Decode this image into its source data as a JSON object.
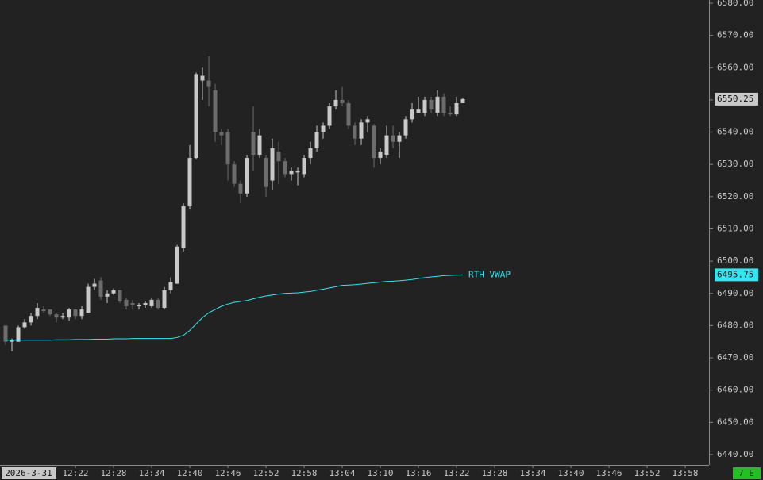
{
  "chart_data": {
    "type": "candlestick",
    "date_label": "2026-3-31",
    "status": "7 E",
    "x": [
      "12:11",
      "12:12",
      "12:13",
      "12:14",
      "12:15",
      "12:16",
      "12:17",
      "12:18",
      "12:19",
      "12:20",
      "12:21",
      "12:22",
      "12:23",
      "12:24",
      "12:25",
      "12:26",
      "12:27",
      "12:28",
      "12:29",
      "12:30",
      "12:31",
      "12:32",
      "12:33",
      "12:34",
      "12:35",
      "12:36",
      "12:37",
      "12:38",
      "12:39",
      "12:40",
      "12:41",
      "12:42",
      "12:43",
      "12:44",
      "12:45",
      "12:46",
      "12:47",
      "12:48",
      "12:49",
      "12:50",
      "12:51",
      "12:52",
      "12:53",
      "12:54",
      "12:55",
      "12:56",
      "12:57",
      "12:58",
      "12:59",
      "13:00",
      "13:01",
      "13:02",
      "13:03",
      "13:04",
      "13:05",
      "13:06",
      "13:07",
      "13:08",
      "13:09",
      "13:10",
      "13:11",
      "13:12",
      "13:13",
      "13:14",
      "13:15",
      "13:16",
      "13:17",
      "13:18",
      "13:19",
      "13:20",
      "13:21",
      "13:22",
      "13:23"
    ],
    "open": [
      6480,
      6475,
      6475,
      6479.5,
      6481,
      6483,
      6485,
      6485,
      6483.5,
      6482.5,
      6482.5,
      6485,
      6483,
      6484,
      6492,
      6494,
      6489,
      6490,
      6491,
      6488,
      6487,
      6486,
      6486.5,
      6486,
      6488,
      6485.5,
      6491,
      6493,
      6504,
      6517,
      6532,
      6556,
      6556,
      6553,
      6540,
      6540,
      6530,
      6524,
      6521,
      6540,
      6533,
      6532,
      6525,
      6534,
      6531,
      6527,
      6527.5,
      6527,
      6532,
      6535,
      6540,
      6542,
      6548,
      6550,
      6549,
      6542,
      6538,
      6543,
      6542,
      6532,
      6533,
      6539,
      6537,
      6539,
      6544,
      6546,
      6546,
      6550,
      6546,
      6551,
      6546,
      6545.5,
      6549
    ],
    "high": [
      6480,
      6476,
      6480,
      6482,
      6484,
      6487,
      6486,
      6485,
      6484,
      6484,
      6485.5,
      6485,
      6486,
      6493,
      6494.5,
      6495,
      6491,
      6491.5,
      6491,
      6488.5,
      6488,
      6487,
      6487.5,
      6488.5,
      6488.5,
      6492,
      6495,
      6505,
      6518,
      6536,
      6558.5,
      6560,
      6563.5,
      6555,
      6541,
      6541,
      6531,
      6525,
      6533,
      6548,
      6541,
      6533,
      6538,
      6537,
      6532,
      6529,
      6529,
      6533,
      6537,
      6542,
      6543,
      6549,
      6553,
      6554,
      6550,
      6543,
      6544,
      6545,
      6542.5,
      6535,
      6542,
      6542,
      6540,
      6545,
      6549,
      6551,
      6551,
      6551,
      6553,
      6552,
      6548,
      6551,
      6550.5
    ],
    "low": [
      6474,
      6472,
      6475,
      6479,
      6480,
      6482,
      6484,
      6483,
      6481,
      6482,
      6481.5,
      6482,
      6482,
      6484,
      6491,
      6488,
      6487,
      6489.5,
      6487,
      6485,
      6485,
      6485,
      6485.5,
      6485.5,
      6485,
      6485,
      6490,
      6493,
      6503,
      6516,
      6531.5,
      6550,
      6548,
      6537,
      6536,
      6525,
      6523,
      6518,
      6520,
      6528,
      6532,
      6520,
      6522,
      6524,
      6526,
      6525,
      6523.5,
      6526,
      6530,
      6534,
      6538,
      6541,
      6547,
      6548,
      6541,
      6536,
      6536,
      6540,
      6529,
      6530,
      6532,
      6535,
      6532,
      6538,
      6543,
      6546,
      6545,
      6546,
      6545,
      6545,
      6545,
      6545,
      6549
    ],
    "close": [
      6475,
      6475.5,
      6479.5,
      6481,
      6483,
      6485.5,
      6484.5,
      6483.5,
      6482.5,
      6483,
      6485,
      6483,
      6485,
      6492,
      6493,
      6489,
      6490,
      6491,
      6487.5,
      6486,
      6486.5,
      6486.5,
      6487,
      6488,
      6485.5,
      6491,
      6493.5,
      6504.5,
      6517,
      6532,
      6558,
      6557.5,
      6554,
      6540,
      6539,
      6530,
      6524,
      6521,
      6532,
      6533,
      6539,
      6523,
      6535,
      6531,
      6527,
      6528,
      6528,
      6532,
      6535,
      6540,
      6542,
      6548,
      6550,
      6549,
      6542,
      6538,
      6543,
      6544,
      6532,
      6534,
      6539,
      6537,
      6539,
      6544,
      6547,
      6547,
      6550,
      6547,
      6551,
      6546,
      6545.5,
      6549,
      6550.25
    ],
    "up_color": "#c8c8c8",
    "down_color": "#6c6c6c",
    "vwap": {
      "name": "RTH VWAP",
      "color": "#33e6f0",
      "values": [
        6475.5,
        6475.5,
        6475.5,
        6475.5,
        6475.5,
        6475.5,
        6475.5,
        6475.5,
        6475.6,
        6475.6,
        6475.6,
        6475.7,
        6475.7,
        6475.7,
        6475.8,
        6475.8,
        6475.8,
        6475.9,
        6475.9,
        6475.9,
        6476,
        6476,
        6476,
        6476,
        6476,
        6476,
        6476,
        6476.3,
        6477,
        6478.5,
        6480.5,
        6482.5,
        6484,
        6485,
        6486,
        6486.7,
        6487.2,
        6487.5,
        6487.8,
        6488.3,
        6488.8,
        6489.2,
        6489.5,
        6489.8,
        6490,
        6490.1,
        6490.2,
        6490.4,
        6490.6,
        6491,
        6491.3,
        6491.7,
        6492.1,
        6492.5,
        6492.6,
        6492.7,
        6492.9,
        6493.1,
        6493.3,
        6493.5,
        6493.7,
        6493.8,
        6493.9,
        6494.1,
        6494.3,
        6494.6,
        6494.9,
        6495.1,
        6495.3,
        6495.5,
        6495.6,
        6495.7,
        6495.75
      ]
    },
    "last_price": 6550.25,
    "vwap_price": 6495.75,
    "xlim": [
      "12:11",
      "13:59"
    ],
    "xticks": [
      "12:22",
      "12:28",
      "12:34",
      "12:40",
      "12:46",
      "12:52",
      "12:58",
      "13:04",
      "13:10",
      "13:16",
      "13:22",
      "13:28",
      "13:34",
      "13:40",
      "13:46",
      "13:52",
      "13:58"
    ],
    "ylim": [
      6438.5,
      6581
    ],
    "yticks": [
      {
        "value": 6440,
        "label": "6440.00"
      },
      {
        "value": 6450,
        "label": "6450.00"
      },
      {
        "value": 6460,
        "label": "6460.00"
      },
      {
        "value": 6470,
        "label": "6470.00"
      },
      {
        "value": 6480,
        "label": "6480.00"
      },
      {
        "value": 6490,
        "label": "6490.00"
      },
      {
        "value": 6500,
        "label": "6500.00"
      },
      {
        "value": 6510,
        "label": "6510.00"
      },
      {
        "value": 6520,
        "label": "6520.00"
      },
      {
        "value": 6530,
        "label": "6530.00"
      },
      {
        "value": 6540,
        "label": "6540.00"
      },
      {
        "value": 6550,
        "label": "6550.00"
      },
      {
        "value": 6560,
        "label": "6560.00"
      },
      {
        "value": 6570,
        "label": "6570.00"
      },
      {
        "value": 6580,
        "label": "6580.00"
      }
    ]
  }
}
